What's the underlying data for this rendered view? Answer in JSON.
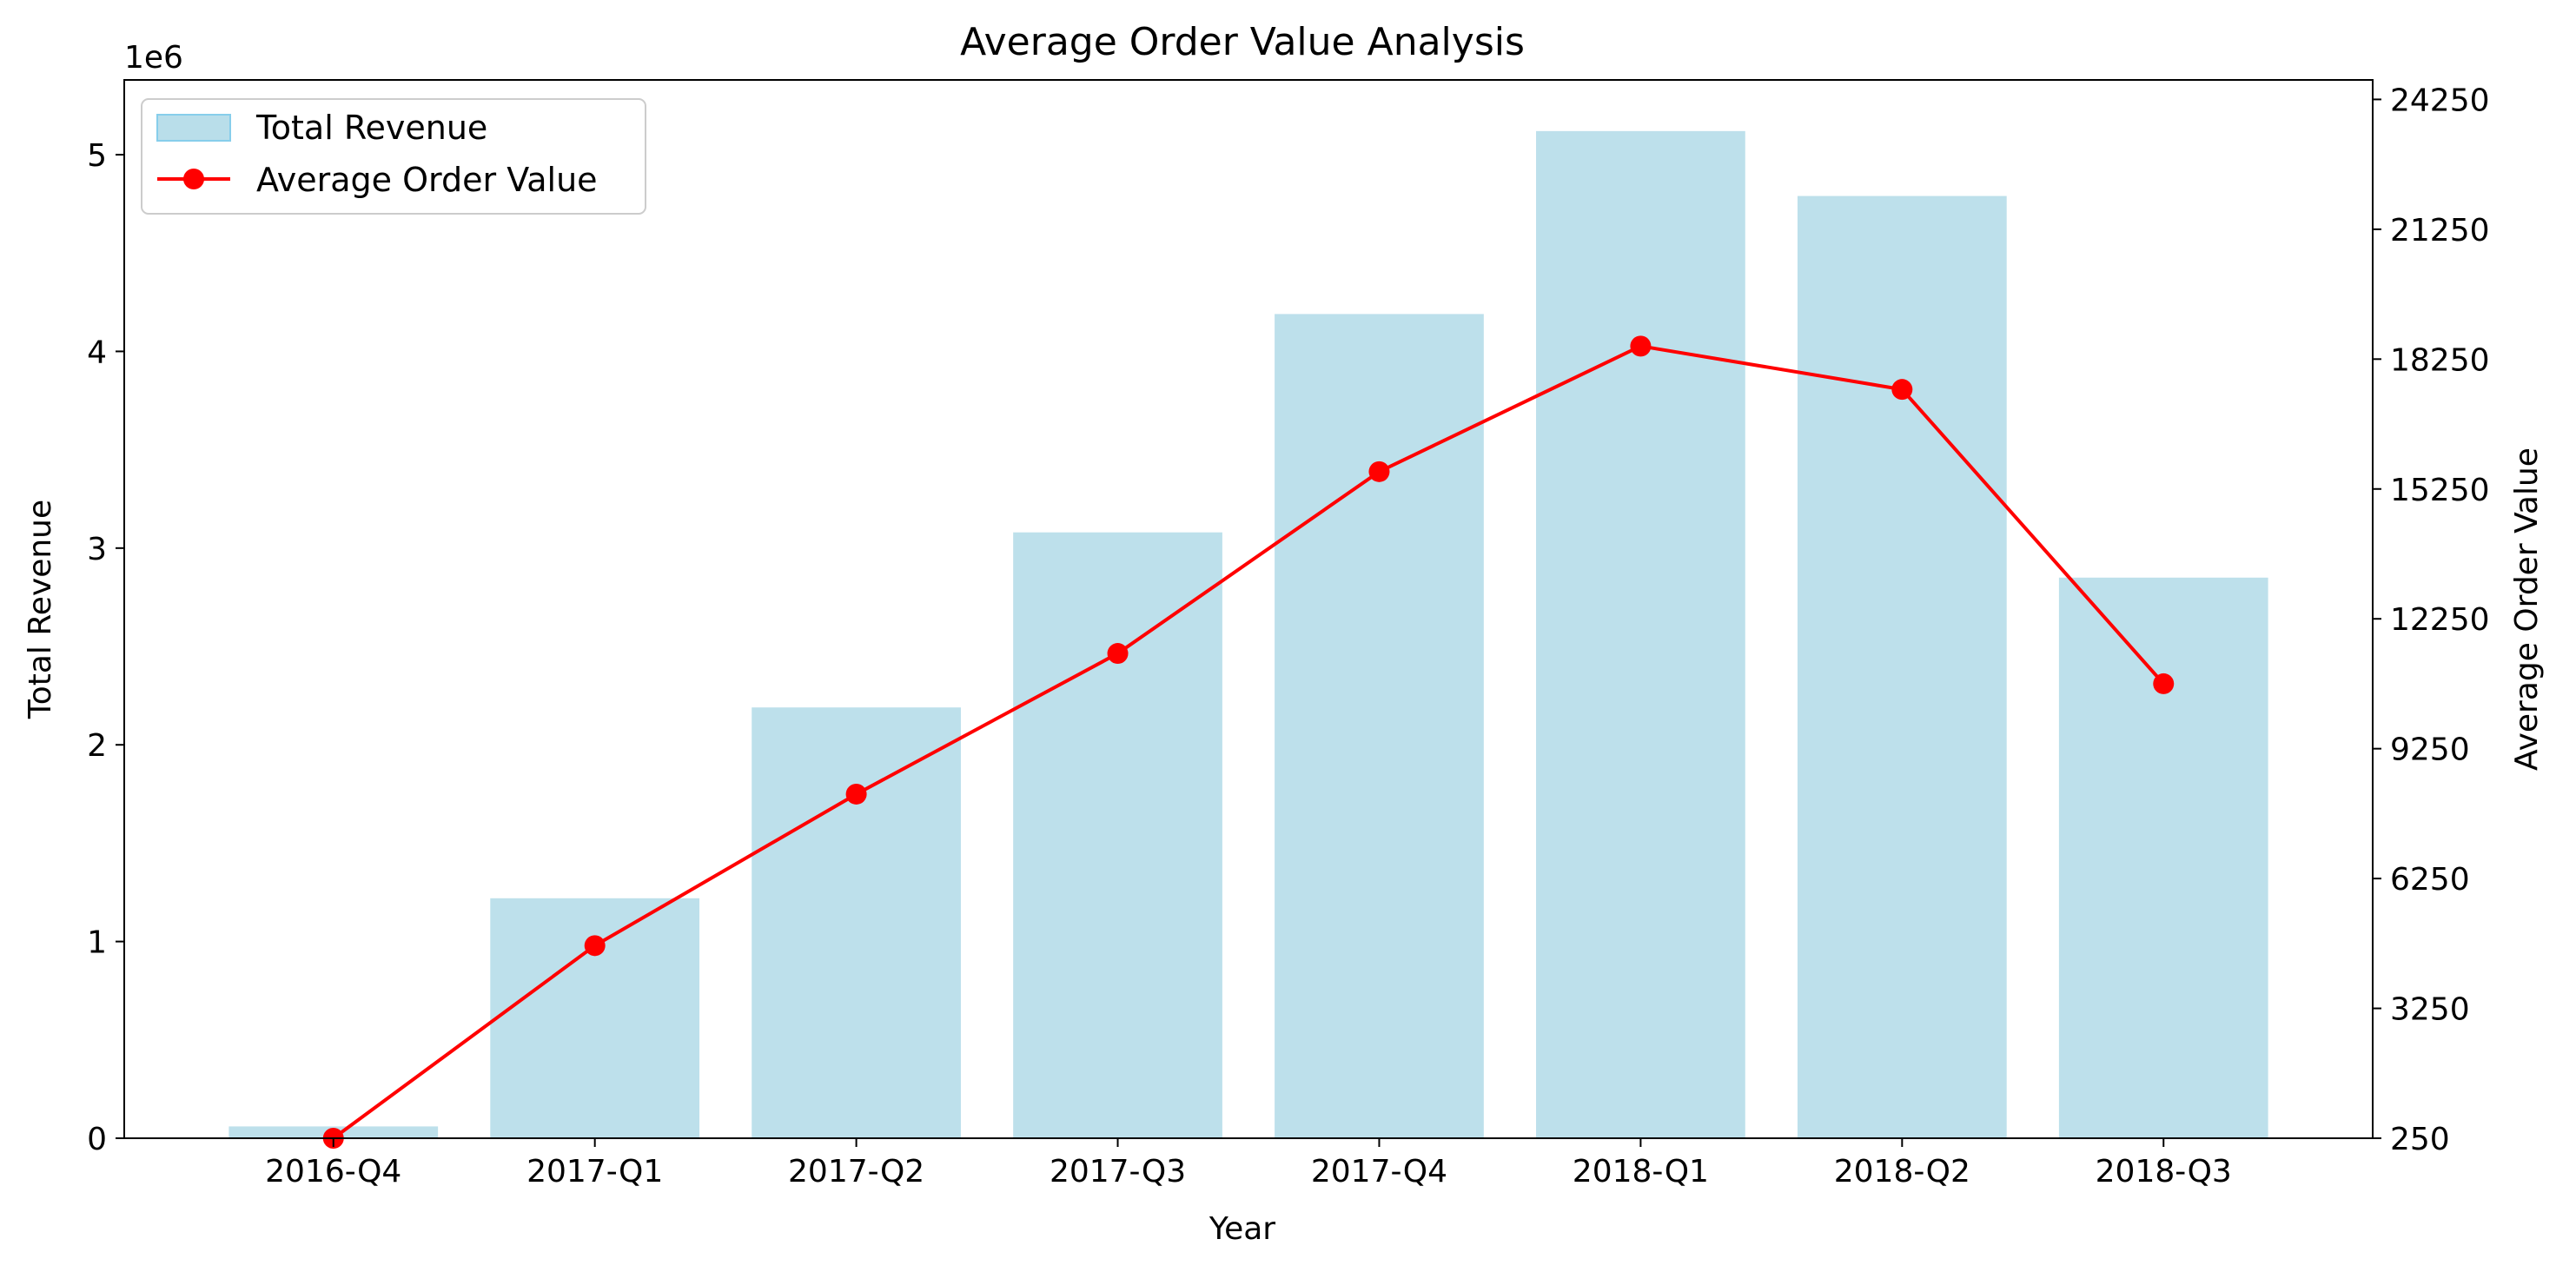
{
  "chart_data": {
    "type": "bar+line",
    "title": "Average Order Value Analysis",
    "xlabel": "Year",
    "ylabel_left": "Total Revenue",
    "ylabel_right": "Average Order Value",
    "left_axis_multiplier": "1e6",
    "categories": [
      "2016-Q4",
      "2017-Q1",
      "2017-Q2",
      "2017-Q3",
      "2017-Q4",
      "2018-Q1",
      "2018-Q2",
      "2018-Q3"
    ],
    "series": [
      {
        "name": "Total Revenue",
        "type": "bar",
        "axis": "left",
        "values": [
          0.06,
          1.22,
          2.19,
          3.08,
          4.19,
          5.12,
          4.79,
          2.85
        ],
        "color": "#add8e6"
      },
      {
        "name": "Average Order Value",
        "type": "line",
        "axis": "right",
        "values": [
          250,
          4700,
          8200,
          11450,
          15650,
          18550,
          17550,
          10750
        ],
        "color": "#ff0000"
      }
    ],
    "left_yticks": [
      "0",
      "1",
      "2",
      "3",
      "4",
      "5"
    ],
    "right_yticks": [
      "250",
      "3250",
      "6250",
      "9250",
      "12250",
      "15250",
      "18250",
      "21250",
      "24250"
    ],
    "left_ylim": [
      0,
      5.38
    ],
    "right_ylim": [
      250,
      24700
    ],
    "legend_placement": "top-left",
    "grid": false
  }
}
